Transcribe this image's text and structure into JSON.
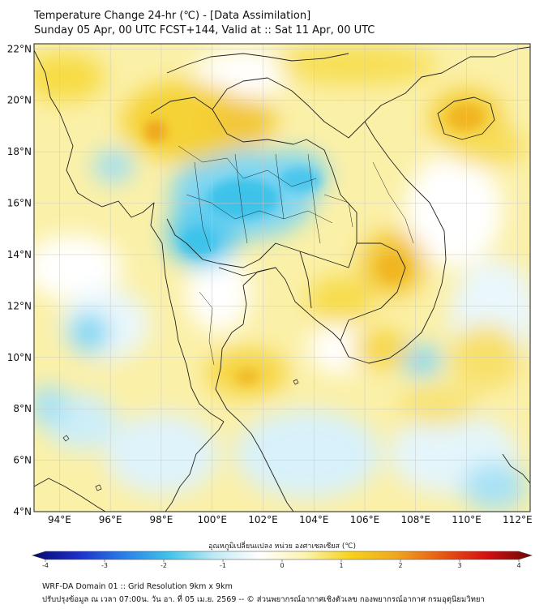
{
  "header": {
    "title": "Temperature Change 24-hr (℃) - [Data Assimilation]",
    "subtitle": "Sunday 05 Apr, 00 UTC FCST+144, Valid at :: Sat 11 Apr, 00 UTC"
  },
  "map": {
    "lat_labels": [
      "22°N",
      "20°N",
      "18°N",
      "16°N",
      "14°N",
      "12°N",
      "10°N",
      "8°N",
      "6°N",
      "4°N"
    ],
    "lon_labels": [
      "94°E",
      "96°E",
      "98°E",
      "100°E",
      "102°E",
      "104°E",
      "106°E",
      "108°E",
      "110°E",
      "112°E"
    ],
    "lat_range": [
      4,
      22.2
    ],
    "lon_range": [
      93,
      112.5
    ],
    "colors": {
      "warm": "#f7d21c",
      "warm_strong": "#f0a81e",
      "cool": "#3ec3ea",
      "cool_light": "#a8e2f5",
      "border": "#222222",
      "grid": "#c8c8c8"
    }
  },
  "colorbar": {
    "title": "อุณหภูมิเปลี่ยนแปลง หน่วย องศาเซลเซียส (℃)",
    "ticks": [
      "-4",
      "-3",
      "-2",
      "-1",
      "0",
      "1",
      "2",
      "3",
      "4"
    ],
    "range": [
      -4,
      4
    ],
    "colors": [
      "#08086e",
      "#1b2fc8",
      "#2a7de8",
      "#3ec3ea",
      "#bfe9f5",
      "#ffffff",
      "#fbf3b0",
      "#f7d21c",
      "#f0a81e",
      "#e85a12",
      "#d41010",
      "#6e0606"
    ]
  },
  "footer": {
    "line1": "WRF-DA Domain 01 :: Grid Resolution 9km x 9km",
    "line2": "ปรับปรุงข้อมูล ณ เวลา 07:00น. วัน อา. ที่ 05 เม.ย. 2569 -- © ส่วนพยากรณ์อากาศเชิงตัวเลข กองพยากรณ์อากาศ กรมอุตุนิยมวิทยา"
  }
}
